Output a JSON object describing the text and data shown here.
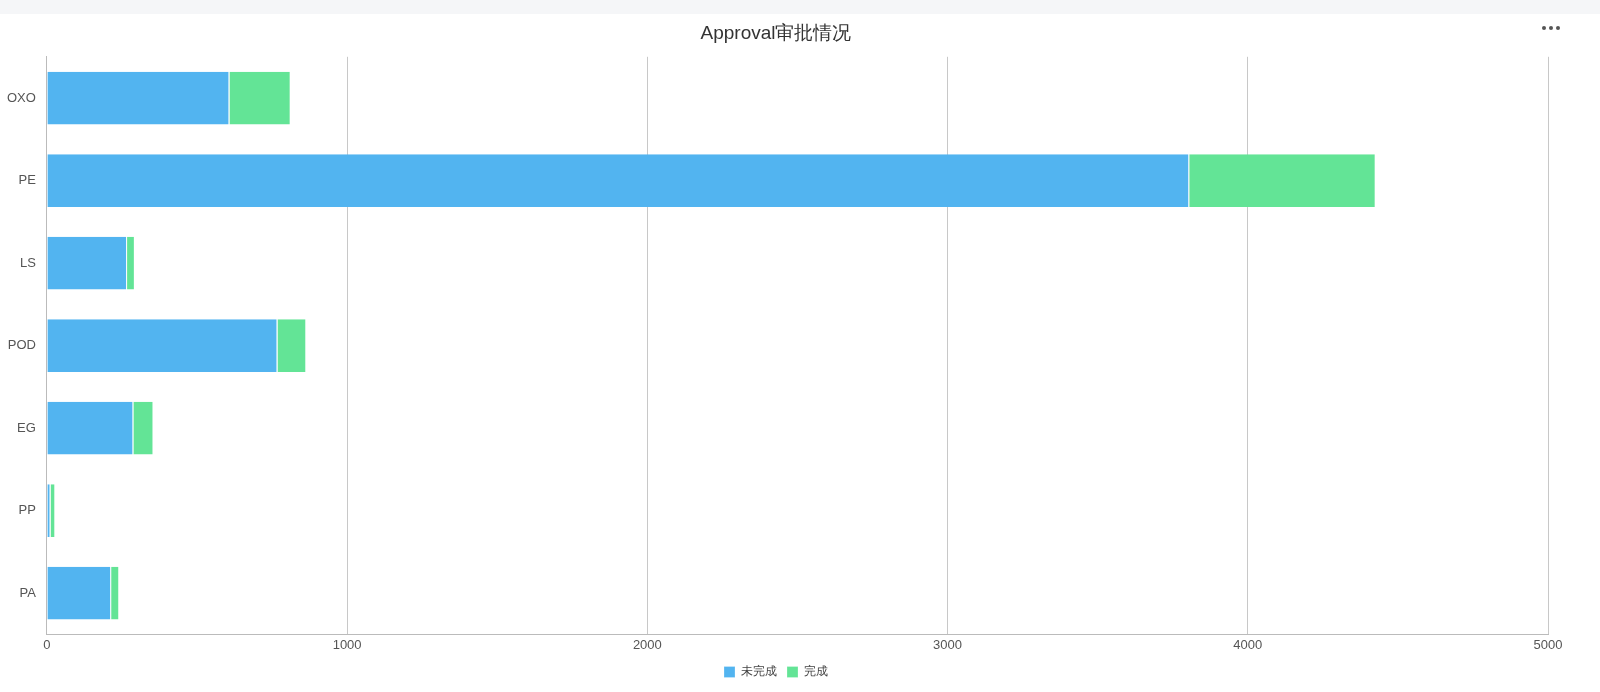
{
  "chart_data": {
    "type": "bar",
    "title": "Approval审批情况",
    "orientation": "horizontal",
    "stacked": true,
    "categories": [
      "OXO",
      "PE",
      "LS",
      "POD",
      "EG",
      "PP",
      "PA"
    ],
    "series": [
      {
        "name": "未完成",
        "color": "#52b4f0",
        "values": [
          608,
          3805,
          267,
          768,
          288,
          12,
          214
        ]
      },
      {
        "name": "完成",
        "color": "#63e496",
        "values": [
          204,
          621,
          26,
          96,
          67,
          16,
          27
        ]
      }
    ],
    "xlim": [
      0,
      5000
    ],
    "xticks": [
      0,
      1000,
      2000,
      3000,
      4000,
      5000
    ],
    "grid": "x",
    "legend": "bottom"
  }
}
